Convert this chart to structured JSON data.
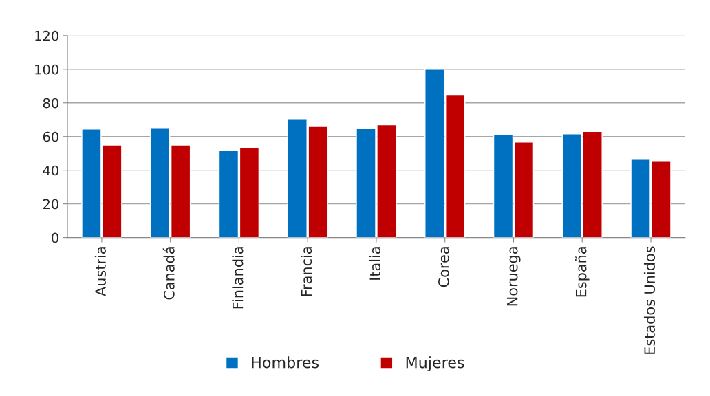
{
  "chart_data": {
    "type": "bar",
    "categories": [
      "Austria",
      "Canadá",
      "Finlandia",
      "Francia",
      "Italia",
      "Corea",
      "Noruega",
      "España",
      "Estados Unidos"
    ],
    "series": [
      {
        "name": "Hombres",
        "color": "#0070c0",
        "values": [
          64.5,
          65.3,
          51.8,
          70.6,
          65,
          100,
          61,
          61.6,
          46.5
        ]
      },
      {
        "name": "Mujeres",
        "color": "#c00000",
        "values": [
          55,
          55,
          53.5,
          66,
          67,
          85,
          56.7,
          63,
          45.7
        ]
      }
    ],
    "ylim": [
      0,
      120
    ],
    "yticks": [
      0,
      20,
      40,
      60,
      80,
      100,
      120
    ],
    "grid": "y",
    "legend": "bottom"
  }
}
